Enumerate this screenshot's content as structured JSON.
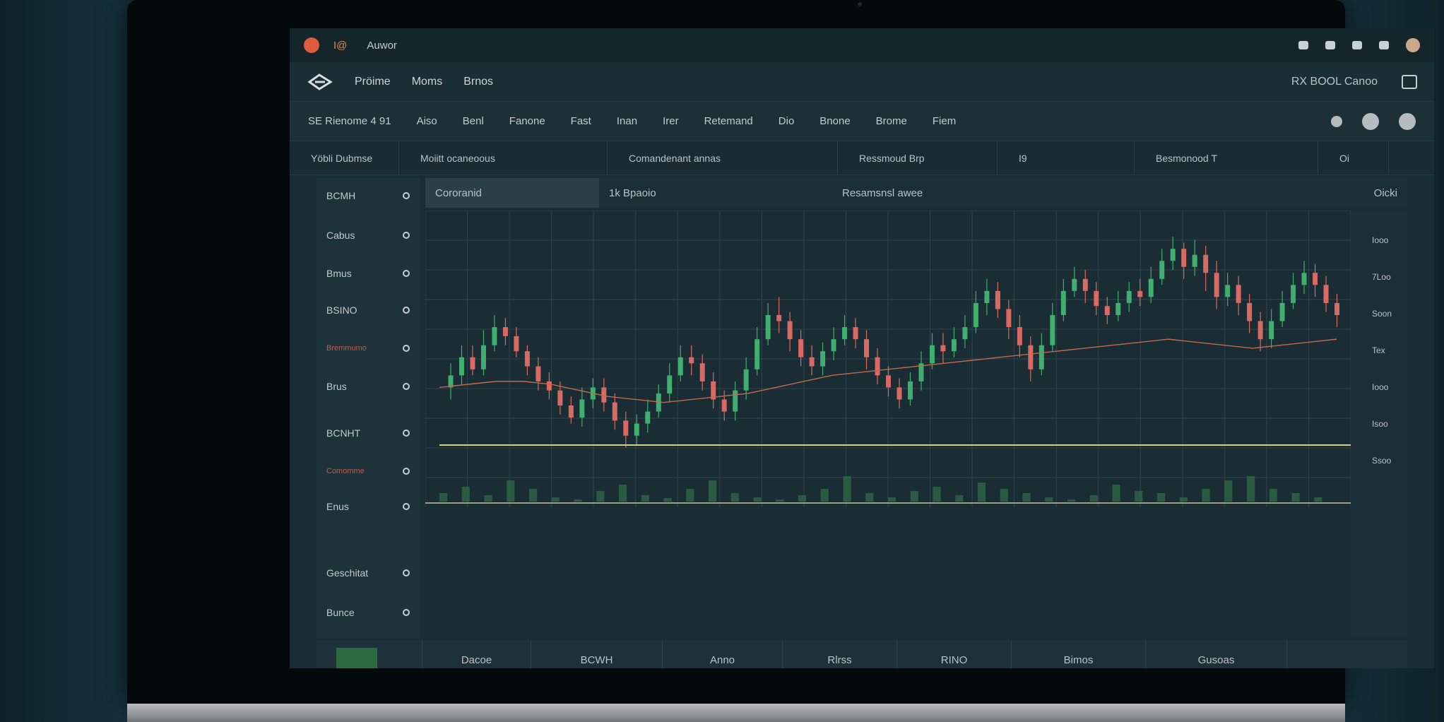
{
  "topbar": {
    "num": "I@",
    "title": "Auwor"
  },
  "navbar": {
    "items": [
      "Pröime",
      "Moms",
      "Brnos"
    ],
    "right_text": "RX BOOL Canoo"
  },
  "toolbar": {
    "items": [
      "SE Rienome 4 91",
      "Aiso",
      "Benl",
      "Fanone",
      "Fast",
      "Inan",
      "Irer",
      "Retemand",
      "Dio",
      "Bnone",
      "Brome",
      "Fiem"
    ]
  },
  "subbar": {
    "cells": [
      "Yöbli Dubmse",
      "Moiitt ocaneoous",
      "Comandenant annas",
      "Ressmoud Brp",
      "I9",
      "Besmonood T",
      "Oi"
    ]
  },
  "sidebar": {
    "items": [
      "BCMH",
      "Cabus",
      "Bmus",
      "BSINO",
      "Bremmumo",
      "Brus",
      "BCNHT",
      "Comomme",
      "Enus",
      "Geschitat",
      "Bunce"
    ]
  },
  "charthead": {
    "tabs": [
      "Cororanid",
      "1k Bpaoio",
      "Resamsnsl awee",
      "Oicki"
    ]
  },
  "chart_data": {
    "type": "candlestick",
    "y_ticks": [
      "Iooo",
      "7Loo",
      "Soon",
      "Tex",
      "Iooo",
      "Isoo",
      "Ssoo"
    ],
    "candles": [
      [
        0.56,
        0.6,
        0.64,
        0.52
      ],
      [
        0.6,
        0.66,
        0.7,
        0.57
      ],
      [
        0.66,
        0.62,
        0.7,
        0.6
      ],
      [
        0.62,
        0.7,
        0.75,
        0.6
      ],
      [
        0.7,
        0.76,
        0.8,
        0.68
      ],
      [
        0.76,
        0.73,
        0.79,
        0.7
      ],
      [
        0.73,
        0.68,
        0.76,
        0.66
      ],
      [
        0.68,
        0.63,
        0.7,
        0.6
      ],
      [
        0.63,
        0.58,
        0.66,
        0.55
      ],
      [
        0.58,
        0.55,
        0.61,
        0.52
      ],
      [
        0.55,
        0.5,
        0.58,
        0.47
      ],
      [
        0.5,
        0.46,
        0.53,
        0.44
      ],
      [
        0.46,
        0.52,
        0.56,
        0.43
      ],
      [
        0.52,
        0.56,
        0.59,
        0.49
      ],
      [
        0.56,
        0.51,
        0.59,
        0.48
      ],
      [
        0.51,
        0.45,
        0.54,
        0.42
      ],
      [
        0.45,
        0.4,
        0.48,
        0.36
      ],
      [
        0.4,
        0.44,
        0.47,
        0.37
      ],
      [
        0.44,
        0.48,
        0.52,
        0.41
      ],
      [
        0.48,
        0.54,
        0.57,
        0.46
      ],
      [
        0.54,
        0.6,
        0.64,
        0.51
      ],
      [
        0.6,
        0.66,
        0.7,
        0.58
      ],
      [
        0.66,
        0.64,
        0.7,
        0.6
      ],
      [
        0.64,
        0.58,
        0.67,
        0.55
      ],
      [
        0.58,
        0.52,
        0.61,
        0.49
      ],
      [
        0.52,
        0.48,
        0.55,
        0.45
      ],
      [
        0.48,
        0.55,
        0.58,
        0.45
      ],
      [
        0.55,
        0.62,
        0.66,
        0.52
      ],
      [
        0.62,
        0.72,
        0.76,
        0.6
      ],
      [
        0.72,
        0.8,
        0.84,
        0.7
      ],
      [
        0.8,
        0.78,
        0.86,
        0.74
      ],
      [
        0.78,
        0.72,
        0.81,
        0.68
      ],
      [
        0.72,
        0.66,
        0.75,
        0.63
      ],
      [
        0.66,
        0.63,
        0.7,
        0.6
      ],
      [
        0.63,
        0.68,
        0.71,
        0.6
      ],
      [
        0.68,
        0.72,
        0.76,
        0.65
      ],
      [
        0.72,
        0.76,
        0.8,
        0.7
      ],
      [
        0.76,
        0.72,
        0.79,
        0.69
      ],
      [
        0.72,
        0.66,
        0.75,
        0.62
      ],
      [
        0.66,
        0.6,
        0.69,
        0.57
      ],
      [
        0.6,
        0.56,
        0.63,
        0.53
      ],
      [
        0.56,
        0.52,
        0.59,
        0.49
      ],
      [
        0.52,
        0.58,
        0.61,
        0.5
      ],
      [
        0.58,
        0.64,
        0.68,
        0.55
      ],
      [
        0.64,
        0.7,
        0.74,
        0.62
      ],
      [
        0.7,
        0.68,
        0.74,
        0.64
      ],
      [
        0.68,
        0.72,
        0.76,
        0.66
      ],
      [
        0.72,
        0.76,
        0.8,
        0.69
      ],
      [
        0.76,
        0.84,
        0.88,
        0.74
      ],
      [
        0.84,
        0.88,
        0.92,
        0.8
      ],
      [
        0.88,
        0.82,
        0.91,
        0.79
      ],
      [
        0.82,
        0.76,
        0.85,
        0.72
      ],
      [
        0.76,
        0.7,
        0.8,
        0.66
      ],
      [
        0.7,
        0.62,
        0.73,
        0.58
      ],
      [
        0.62,
        0.7,
        0.74,
        0.6
      ],
      [
        0.7,
        0.8,
        0.84,
        0.68
      ],
      [
        0.8,
        0.88,
        0.92,
        0.78
      ],
      [
        0.88,
        0.92,
        0.96,
        0.86
      ],
      [
        0.92,
        0.88,
        0.95,
        0.84
      ],
      [
        0.88,
        0.83,
        0.91,
        0.8
      ],
      [
        0.83,
        0.8,
        0.86,
        0.77
      ],
      [
        0.8,
        0.84,
        0.88,
        0.78
      ],
      [
        0.84,
        0.88,
        0.91,
        0.81
      ],
      [
        0.88,
        0.86,
        0.92,
        0.83
      ],
      [
        0.86,
        0.92,
        0.96,
        0.84
      ],
      [
        0.92,
        0.98,
        1.02,
        0.9
      ],
      [
        0.98,
        1.02,
        1.06,
        0.95
      ],
      [
        1.02,
        0.96,
        1.04,
        0.92
      ],
      [
        0.96,
        1.0,
        1.05,
        0.93
      ],
      [
        1.0,
        0.94,
        1.03,
        0.88
      ],
      [
        0.94,
        0.86,
        0.98,
        0.82
      ],
      [
        0.86,
        0.9,
        0.94,
        0.83
      ],
      [
        0.9,
        0.84,
        0.93,
        0.8
      ],
      [
        0.84,
        0.78,
        0.87,
        0.74
      ],
      [
        0.78,
        0.72,
        0.81,
        0.68
      ],
      [
        0.72,
        0.78,
        0.82,
        0.69
      ],
      [
        0.78,
        0.84,
        0.88,
        0.76
      ],
      [
        0.84,
        0.9,
        0.94,
        0.82
      ],
      [
        0.9,
        0.94,
        0.98,
        0.87
      ],
      [
        0.94,
        0.9,
        0.97,
        0.86
      ],
      [
        0.9,
        0.84,
        0.93,
        0.81
      ],
      [
        0.84,
        0.8,
        0.87,
        0.76
      ]
    ],
    "ma_line": [
      0.56,
      0.57,
      0.58,
      0.58,
      0.57,
      0.55,
      0.53,
      0.52,
      0.51,
      0.52,
      0.53,
      0.54,
      0.56,
      0.58,
      0.6,
      0.61,
      0.62,
      0.63,
      0.64,
      0.65,
      0.66,
      0.67,
      0.68,
      0.69,
      0.7,
      0.71,
      0.72,
      0.71,
      0.7,
      0.69,
      0.7,
      0.71,
      0.72
    ],
    "volumes": [
      0.2,
      0.35,
      0.15,
      0.5,
      0.3,
      0.1,
      0.05,
      0.25,
      0.4,
      0.15,
      0.08,
      0.3,
      0.5,
      0.2,
      0.1,
      0.05,
      0.15,
      0.3,
      0.6,
      0.2,
      0.1,
      0.25,
      0.35,
      0.15,
      0.45,
      0.3,
      0.2,
      0.1,
      0.05,
      0.15,
      0.4,
      0.25,
      0.2,
      0.1,
      0.3,
      0.5,
      0.6,
      0.3,
      0.2,
      0.1
    ]
  },
  "bottombar": {
    "items": [
      "Dacoe",
      "BCWH",
      "Anno",
      "Rlrss",
      "RINO",
      "Bimos",
      "Gusoas"
    ]
  },
  "colors": {
    "up": "#3fae6e",
    "down": "#d86a63",
    "ma": "#c46a4c",
    "baseline": "#d8d08a",
    "grid": "#2e434d"
  }
}
